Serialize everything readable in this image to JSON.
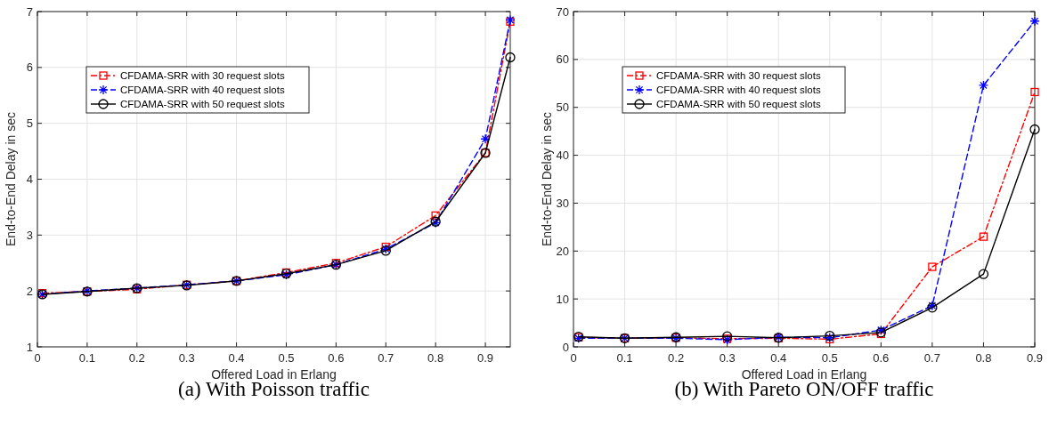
{
  "chart_data": [
    {
      "type": "line",
      "title": "(a) With Poisson traffic",
      "xlabel": "Offered Load in Erlang",
      "ylabel": "End-to-End Delay in sec",
      "x": [
        0.01,
        0.1,
        0.2,
        0.3,
        0.4,
        0.5,
        0.6,
        0.7,
        0.8,
        0.9,
        0.95
      ],
      "xlim": [
        0,
        0.95
      ],
      "xticks": [
        0,
        0.1,
        0.2,
        0.3,
        0.4,
        0.5,
        0.6,
        0.7,
        0.8,
        0.9
      ],
      "ylim": [
        1,
        7
      ],
      "yticks": [
        1,
        2,
        3,
        4,
        5,
        6,
        7
      ],
      "grid": true,
      "legend": "top left",
      "series": [
        {
          "name": "CFDAMA-SRR with 30 request slots",
          "color": "#ff0000",
          "marker": "square",
          "line_style": "dashdot",
          "values": [
            1.96,
            1.99,
            2.03,
            2.11,
            2.18,
            2.33,
            2.5,
            2.79,
            3.35,
            4.47,
            6.82
          ]
        },
        {
          "name": "CFDAMA-SRR with 40 request slots",
          "color": "#0000ff",
          "marker": "cross",
          "line_style": "dashed",
          "values": [
            1.94,
            2.0,
            2.05,
            2.11,
            2.18,
            2.29,
            2.47,
            2.75,
            3.22,
            4.72,
            6.85
          ]
        },
        {
          "name": "CFDAMA-SRR with 50 request slots",
          "color": "#000000",
          "marker": "circle",
          "line_style": "solid",
          "values": [
            1.94,
            1.99,
            2.05,
            2.1,
            2.18,
            2.31,
            2.47,
            2.72,
            3.24,
            4.47,
            6.18
          ]
        }
      ]
    },
    {
      "type": "line",
      "title": "(b) With Pareto ON/OFF traffic",
      "xlabel": "Offered Load in Erlang",
      "ylabel": "End-to-End Delay in sec",
      "x": [
        0.01,
        0.1,
        0.2,
        0.3,
        0.4,
        0.5,
        0.6,
        0.7,
        0.8,
        0.9
      ],
      "xlim": [
        0,
        0.9
      ],
      "xticks": [
        0,
        0.1,
        0.2,
        0.3,
        0.4,
        0.5,
        0.6,
        0.7,
        0.8,
        0.9
      ],
      "ylim": [
        0,
        70
      ],
      "yticks": [
        0,
        10,
        20,
        30,
        40,
        50,
        60,
        70
      ],
      "grid": true,
      "legend": "top left",
      "series": [
        {
          "name": "CFDAMA-SRR with 30 request slots",
          "color": "#ff0000",
          "marker": "square",
          "line_style": "dashdot",
          "values": [
            2.0,
            1.8,
            1.9,
            1.7,
            1.8,
            1.6,
            2.7,
            16.7,
            23.0,
            53.2
          ]
        },
        {
          "name": "CFDAMA-SRR with 40 request slots",
          "color": "#0000ff",
          "marker": "cross",
          "line_style": "dashed",
          "values": [
            1.8,
            1.8,
            1.8,
            1.5,
            2.0,
            1.9,
            3.5,
            8.6,
            54.6,
            68.0
          ]
        },
        {
          "name": "CFDAMA-SRR with 50 request slots",
          "color": "#000000",
          "marker": "circle",
          "line_style": "solid",
          "values": [
            2.1,
            1.8,
            2.0,
            2.2,
            1.9,
            2.3,
            3.0,
            8.2,
            15.2,
            45.4
          ]
        }
      ]
    }
  ]
}
